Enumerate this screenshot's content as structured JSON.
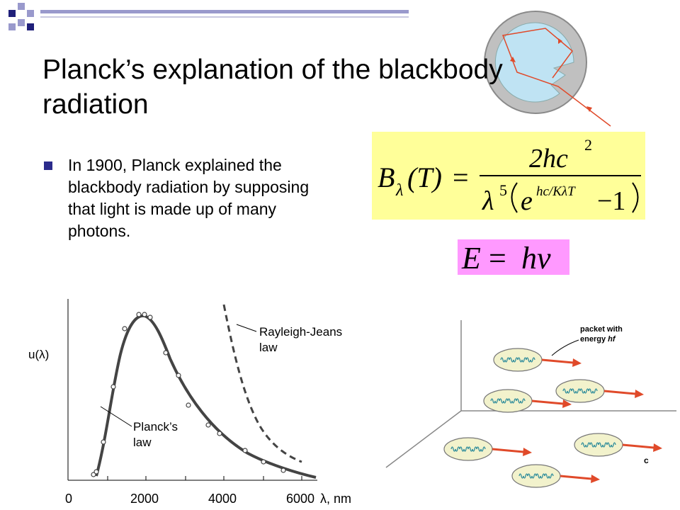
{
  "title": "Planck’s explanation of the blackbody radiation",
  "bullet": "In 1900, Planck explained the blackbody radiation by supposing that light is made up of many photons.",
  "colors": {
    "accent_dark": "#1f1f7a",
    "accent_light": "#9999cc",
    "planck_box": "#ffff99",
    "photon_box": "#ff99ff",
    "cavity_fill": "#bfe3f3",
    "ray": "#e04a2a"
  },
  "equations": {
    "planck": {
      "lhs": "B",
      "sub": "λ",
      "arg": "(T)",
      "eq": "=",
      "numerator": "2hc",
      "num_exp": "2",
      "denom_lambda": "λ",
      "denom_exp": "5",
      "exp_base": "e",
      "exponent": "hc/KλT",
      "minus_one": "−1"
    },
    "photon": {
      "lhs": "E",
      "eq": "=",
      "rhs": "hν"
    }
  },
  "plot": {
    "ylabel": "u(λ)",
    "xlabel": "λ, nm",
    "xticks": [
      "0",
      "2000",
      "4000",
      "6000"
    ],
    "rj_label_1": "Rayleigh-Jeans",
    "rj_label_2": "law",
    "planck_label_1": "Planck’s",
    "planck_label_2": "law"
  },
  "photon_diagram": {
    "label_1": "packet with",
    "label_2": "energy ",
    "label_hf": "hf",
    "c_label": "c"
  }
}
